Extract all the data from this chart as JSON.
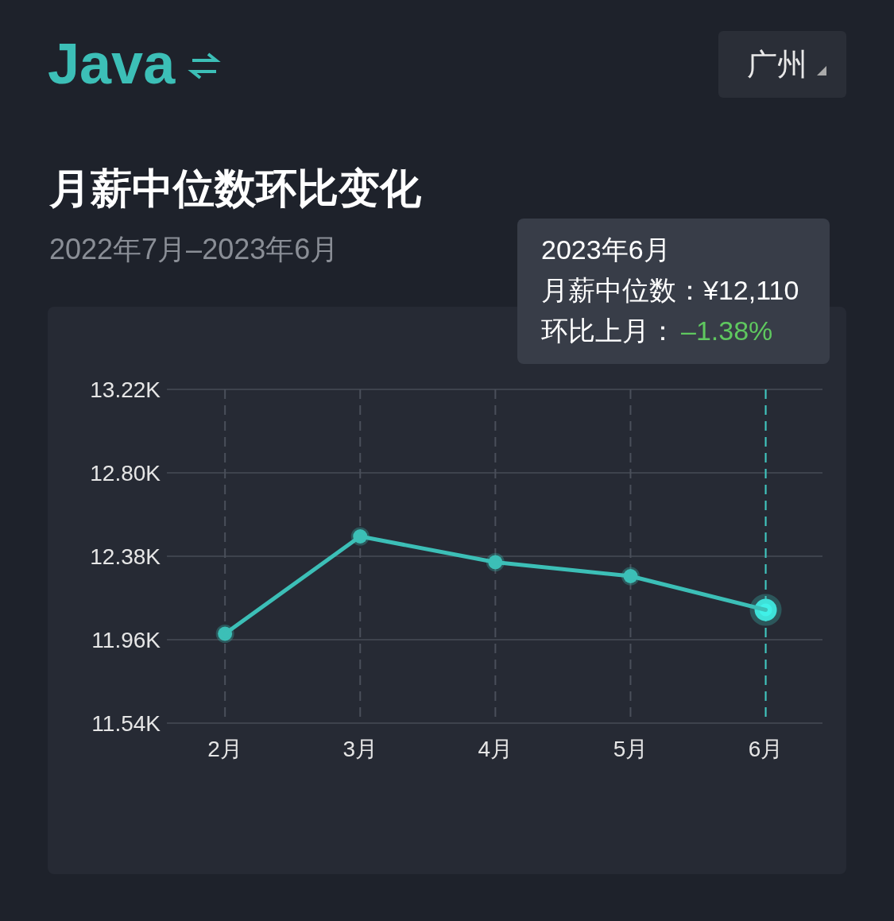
{
  "chart_data": {
    "type": "line",
    "title": "月薪中位数环比变化",
    "subtitle": "2022年7月–2023年6月",
    "annotations": [
      "Java",
      "广州",
      "2023年6月",
      "月薪中位数：¥12,110",
      "环比上月：",
      "–1.38%"
    ],
    "x": [
      2,
      3,
      4,
      5,
      6
    ],
    "series": [
      {
        "color": "#3cbfb7",
        "values": [
          11.99,
          12.48,
          12.35,
          12.28,
          12.11
        ]
      }
    ],
    "xlim": [
      1.57,
      6.42
    ],
    "xticks": [
      {
        "value": 2,
        "label": "2月"
      },
      {
        "value": 3,
        "label": "3月"
      },
      {
        "value": 4,
        "label": "4月"
      },
      {
        "value": 5,
        "label": "5月"
      },
      {
        "value": 6,
        "label": "6月"
      }
    ],
    "ylim": [
      11.54,
      13.22
    ],
    "yticks": [
      {
        "value": 11.54,
        "label": "11.54K"
      },
      {
        "value": 11.96,
        "label": "11.96K"
      },
      {
        "value": 12.38,
        "label": "12.38K"
      },
      {
        "value": 12.8,
        "label": "12.80K"
      },
      {
        "value": 13.22,
        "label": "13.22K"
      }
    ],
    "ref_lines": [
      {
        "axis": "x",
        "value": 6,
        "color": "#3cc8c0",
        "line_style": "dashed"
      }
    ],
    "grid": true,
    "marker": "circle",
    "line_style": "solid"
  }
}
